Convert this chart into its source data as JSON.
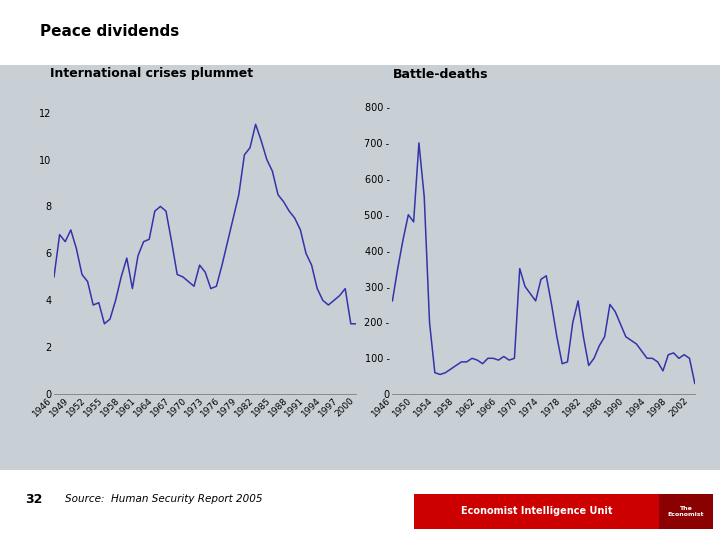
{
  "title": "Peace dividends",
  "subtitle_left": "International crises plummet",
  "subtitle_right": "Battle-deaths",
  "source": "Source:  Human Security Report 2005",
  "page_number": "32",
  "bg_color": "#c9d0d5",
  "white_bg": "#ffffff",
  "line_color": "#3333aa",
  "crises_years": [
    1946,
    1947,
    1948,
    1949,
    1950,
    1951,
    1952,
    1953,
    1954,
    1955,
    1956,
    1957,
    1958,
    1959,
    1960,
    1961,
    1962,
    1963,
    1964,
    1965,
    1966,
    1967,
    1968,
    1969,
    1970,
    1971,
    1972,
    1973,
    1974,
    1975,
    1976,
    1977,
    1978,
    1979,
    1980,
    1981,
    1982,
    1983,
    1984,
    1985,
    1986,
    1987,
    1988,
    1989,
    1990,
    1991,
    1992,
    1993,
    1994,
    1995,
    1996,
    1997,
    1998,
    1999,
    2000
  ],
  "crises_values": [
    5.0,
    6.8,
    6.5,
    7.0,
    6.2,
    5.1,
    4.8,
    3.8,
    3.9,
    3.0,
    3.2,
    4.0,
    5.0,
    5.8,
    4.5,
    5.9,
    6.5,
    6.6,
    7.8,
    8.0,
    7.8,
    6.5,
    5.1,
    5.0,
    4.8,
    4.6,
    5.5,
    5.2,
    4.5,
    4.6,
    5.5,
    6.5,
    7.5,
    8.5,
    10.2,
    10.5,
    11.5,
    10.8,
    10.0,
    9.5,
    8.5,
    8.2,
    7.8,
    7.5,
    7.0,
    6.0,
    5.5,
    4.5,
    4.0,
    3.8,
    4.0,
    4.2,
    4.5,
    3.0,
    3.0
  ],
  "crises_yticks": [
    0,
    2,
    4,
    6,
    8,
    10,
    12
  ],
  "crises_xticks": [
    1946,
    1949,
    1952,
    1955,
    1958,
    1961,
    1964,
    1967,
    1970,
    1973,
    1976,
    1979,
    1982,
    1985,
    1988,
    1991,
    1994,
    1997,
    2000
  ],
  "deaths_years": [
    1946,
    1947,
    1948,
    1949,
    1950,
    1951,
    1952,
    1953,
    1954,
    1955,
    1956,
    1957,
    1958,
    1959,
    1960,
    1961,
    1962,
    1963,
    1964,
    1965,
    1966,
    1967,
    1968,
    1969,
    1970,
    1971,
    1972,
    1973,
    1974,
    1975,
    1976,
    1977,
    1978,
    1979,
    1980,
    1981,
    1982,
    1983,
    1984,
    1985,
    1986,
    1987,
    1988,
    1989,
    1990,
    1991,
    1992,
    1993,
    1994,
    1995,
    1996,
    1997,
    1998,
    1999,
    2000,
    2001,
    2002,
    2003
  ],
  "deaths_values": [
    260,
    350,
    430,
    500,
    480,
    700,
    550,
    200,
    60,
    55,
    60,
    70,
    80,
    90,
    90,
    100,
    95,
    85,
    100,
    100,
    95,
    105,
    95,
    100,
    350,
    300,
    280,
    260,
    320,
    330,
    250,
    160,
    85,
    90,
    200,
    260,
    160,
    80,
    100,
    135,
    160,
    250,
    230,
    195,
    160,
    150,
    140,
    120,
    100,
    100,
    90,
    65,
    110,
    115,
    100,
    110,
    100,
    30
  ],
  "deaths_yticks": [
    0,
    100,
    200,
    300,
    400,
    500,
    600,
    700,
    800
  ],
  "deaths_xticks": [
    1946,
    1950,
    1954,
    1958,
    1962,
    1966,
    1970,
    1974,
    1978,
    1982,
    1986,
    1990,
    1994,
    1998,
    2002
  ]
}
